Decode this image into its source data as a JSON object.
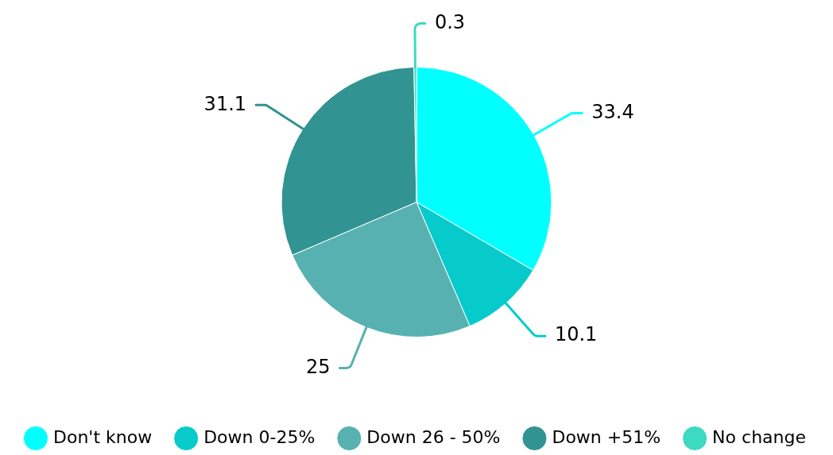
{
  "chart_data": {
    "type": "pie",
    "categories": [
      "Don't know",
      "Down 0-25%",
      "Down 26 - 50%",
      "Down +51%",
      "No change"
    ],
    "values": [
      33.4,
      10.1,
      25,
      31.1,
      0.3
    ],
    "colors": [
      "#00ffff",
      "#07cbcb",
      "#57b1b1",
      "#319392",
      "#3dd9c1"
    ],
    "data_labels": true,
    "legend": "bottom"
  }
}
